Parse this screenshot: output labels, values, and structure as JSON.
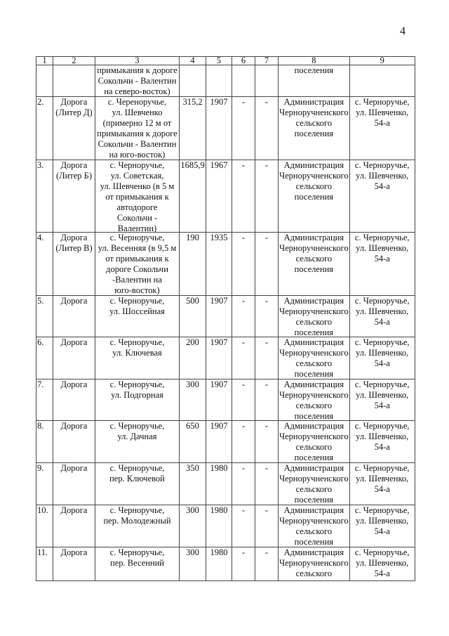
{
  "page_number": "4",
  "table": {
    "headers": [
      "1",
      "2",
      "3",
      "4",
      "5",
      "6",
      "7",
      "8",
      "9"
    ],
    "rows": [
      {
        "cells": [
          "",
          "",
          "примыкания к дороге\nСокольчи - Валентин\nна северо-восток)",
          "",
          "",
          "",
          "",
          "поселения",
          ""
        ]
      },
      {
        "cells": [
          "2.",
          "Дорога\n(Литер Д)",
          "с. Череноручье,\nул. Шевченко\n(примерно 12 м от\nпримыкания к дороге\nСокольчи - Валентин\nна юго-восток)",
          "315,2",
          "1907",
          "-",
          "-",
          "Администрация\nЧерноручненского\nсельского\nпоселения",
          "с. Черноручье,\nул. Шевченко,\n54-а"
        ]
      },
      {
        "cells": [
          "3.",
          "Дорога\n(Литер Б)",
          "с. Черноручье,\nул. Советская,\nул. Шевченко (в 5 м\nот примыкания к\nавтодороге\nСокольчи -\nВалентин)",
          "1685,9",
          "1967",
          "-",
          "-",
          "Администрация\nЧерноручненского\nсельского\nпоселения",
          "с. Черноручье,\nул. Шевченко,\n54-а"
        ]
      },
      {
        "cells": [
          "4.",
          "Дорога\n(Литер В)",
          "с. Черноручье,\nул. Весенняя (в 9,5 м\nот примыкания к\nдороге Сокольчи\n-Валентин на\nюго-восток)",
          "190",
          "1935",
          "-",
          "-",
          "Администрация\nЧерноручненского\nсельского\nпоселения",
          "с. Черноручье,\nул. Шевченко,\n54-а"
        ]
      },
      {
        "cells": [
          "5.",
          "Дорога",
          "с. Черноручье,\nул. Шоссейная",
          "500",
          "1907",
          "-",
          "-",
          "Администрация\nЧерноручненского\nсельского\nпоселения",
          "с. Черноручье,\nул. Шевченко,\n54-а"
        ]
      },
      {
        "cells": [
          "6.",
          "Дорога",
          "с. Черноручье,\nул. Ключевая",
          "200",
          "1907",
          "-",
          "-",
          "Администрация\nЧерноручненского\nсельского\nпоселения",
          "с. Черноручье,\nул. Шевченко,\n54-а"
        ]
      },
      {
        "cells": [
          "7.",
          "Дорога",
          "с. Черноручье,\nул. Подгорная",
          "300",
          "1907",
          "-",
          "-",
          "Администрация\nЧерноручненского\nсельского\nпоселения",
          "с. Черноручье,\nул. Шевченко,\n54-а"
        ]
      },
      {
        "cells": [
          "8.",
          "Дорога",
          "с. Черноручье,\nул. Дачная",
          "650",
          "1907",
          "-",
          "-",
          "Администрация\nЧерноручненского\nсельского\nпоселения",
          "с. Черноручье,\nул. Шевченко,\n54-а"
        ]
      },
      {
        "cells": [
          "9.",
          "Дорога",
          "с. Черноручье,\nпер. Ключевой",
          "350",
          "1980",
          "-",
          "-",
          "Администрация\nЧерноручненского\nсельского\nпоселения",
          "с. Черноручье,\nул. Шевченко,\n54-а"
        ]
      },
      {
        "cells": [
          "10.",
          "Дорога",
          "с. Черноручье,\nпер. Молодежный",
          "300",
          "1980",
          "-",
          "-",
          "Администрация\nЧерноручненского\nсельского\nпоселения",
          "с. Черноручье,\nул. Шевченко,\n54-а"
        ]
      },
      {
        "cells": [
          "11.",
          "Дорога",
          "с. Черноручье,\nпер. Весенний",
          "300",
          "1980",
          "-",
          "-",
          "Администрация\nЧерноручненского\nсельского",
          "с. Черноручье,\nул. Шевченко,\n54-а"
        ]
      }
    ]
  }
}
